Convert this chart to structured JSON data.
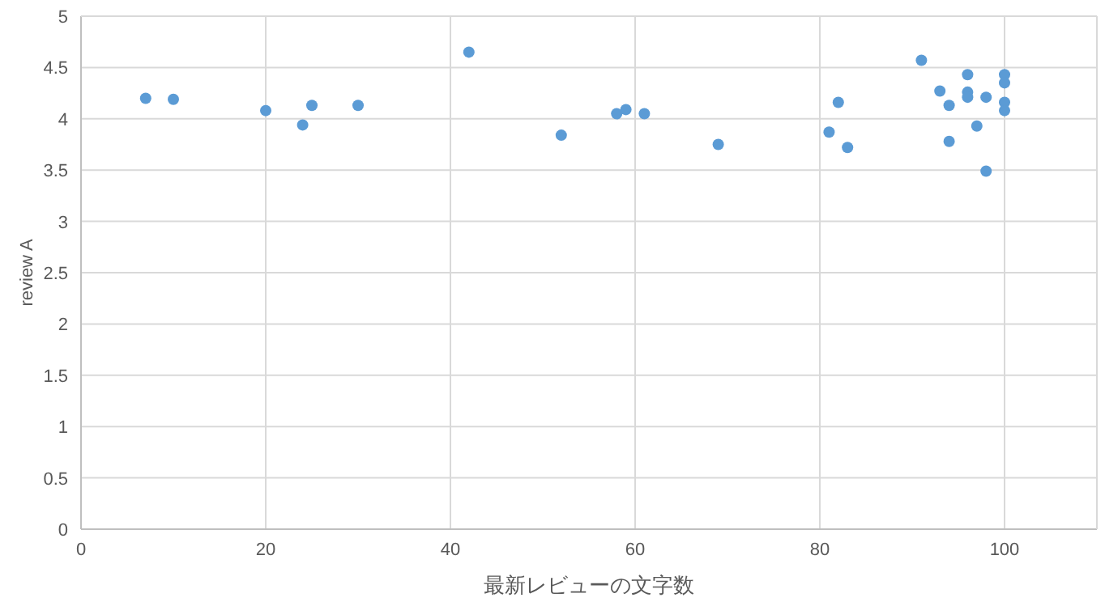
{
  "chart_data": {
    "type": "scatter",
    "xlabel": "最新レビューの文字数",
    "ylabel": "review A",
    "xlim": [
      0,
      110
    ],
    "xticks": [
      0,
      20,
      40,
      60,
      80,
      100
    ],
    "ylim": [
      0,
      5
    ],
    "yticks": [
      0,
      0.5,
      1,
      1.5,
      2,
      2.5,
      3,
      3.5,
      4,
      4.5,
      5
    ],
    "grid": true,
    "marker": "circle",
    "series": [
      {
        "color": "#5b9bd5",
        "x": [
          7,
          10,
          20,
          24,
          25,
          30,
          42,
          52,
          58,
          59,
          61,
          69,
          81,
          82,
          83,
          91,
          93,
          94,
          94,
          96,
          96,
          96,
          97,
          98,
          98,
          100,
          100,
          100,
          100
        ],
        "values": [
          4.2,
          4.19,
          4.08,
          3.94,
          4.13,
          4.13,
          4.65,
          3.84,
          4.05,
          4.09,
          4.05,
          3.75,
          3.87,
          4.16,
          3.72,
          4.57,
          4.27,
          4.13,
          3.78,
          4.43,
          4.26,
          4.21,
          3.93,
          4.21,
          3.49,
          4.43,
          4.35,
          4.16,
          4.08
        ]
      }
    ]
  }
}
